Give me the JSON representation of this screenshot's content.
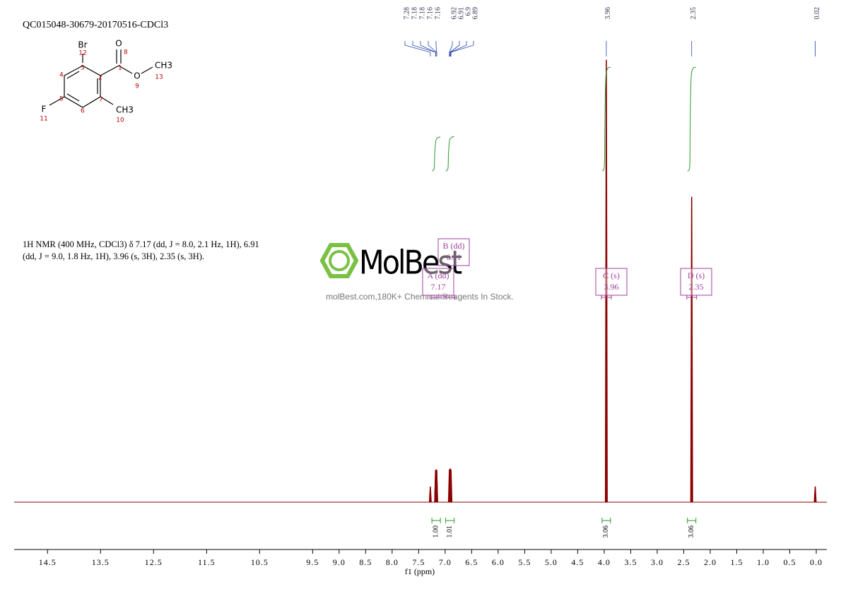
{
  "chart_data": {
    "type": "nmr",
    "title": "QC015048-30679-20170516-CDCl3",
    "description": [
      "1H NMR (400 MHz, CDCl3) δ 7.17 (dd, J = 8.0, 2.1 Hz, 1H), 6.91",
      "(dd, J = 9.0, 1.8 Hz, 1H), 3.96 (s, 3H), 2.35 (s, 3H)."
    ],
    "x_label": "f1 (ppm)",
    "xlim": [
      15.13,
      -0.2
    ],
    "ylim": [
      0,
      100
    ],
    "xticks": [
      14.5,
      13.5,
      12.5,
      11.5,
      10.5,
      9.5,
      {
        "value": 9,
        "label": "9.0"
      },
      8.5,
      {
        "value": 8,
        "label": "8.0"
      },
      7.5,
      {
        "value": 7,
        "label": "7.0"
      },
      6.5,
      {
        "value": 6,
        "label": "6.0"
      },
      5.5,
      {
        "value": 5,
        "label": "5.0"
      },
      4.5,
      {
        "value": 4,
        "label": "4.0"
      },
      3.5,
      {
        "value": 3,
        "label": "3.0"
      },
      2.5,
      {
        "value": 2,
        "label": "2.0"
      },
      1.5,
      {
        "value": 1,
        "label": "1.0"
      },
      0.5,
      {
        "value": 0,
        "label": "0.0"
      }
    ],
    "color": "#8b0000",
    "peaks": {
      "ppm": [
        7.28,
        7.18,
        7.18,
        7.16,
        7.16,
        6.92,
        6.91,
        6.9,
        6.89,
        3.96,
        2.35,
        0.02
      ],
      "heights": [
        3.5,
        7,
        7.3,
        7.3,
        7,
        7.3,
        7.5,
        7.5,
        7.3,
        100,
        69,
        3.5
      ]
    },
    "multiplets": {
      "names": [
        "A (dd)",
        "B (dd)",
        "C (s)",
        "D (s)"
      ],
      "shifts": [
        7.17,
        6.91,
        3.96,
        2.35
      ]
    },
    "integrals": {
      "values": [
        1,
        1.01,
        3.06,
        3.06
      ],
      "value_labels": [
        "1.00",
        "1.01",
        "3.06",
        "3.06"
      ]
    },
    "watermark": {
      "brand": "MolBest",
      "tagline": "molBest.com,180K+ Chemical Reagents In Stock."
    }
  },
  "structure": {
    "atoms": [
      "Br",
      "12",
      "O",
      "8",
      "3",
      "2",
      "1",
      "4",
      "5",
      "6",
      "7",
      "9",
      "O",
      "13",
      "CH3",
      "F",
      "11",
      "CH3",
      "10"
    ]
  }
}
